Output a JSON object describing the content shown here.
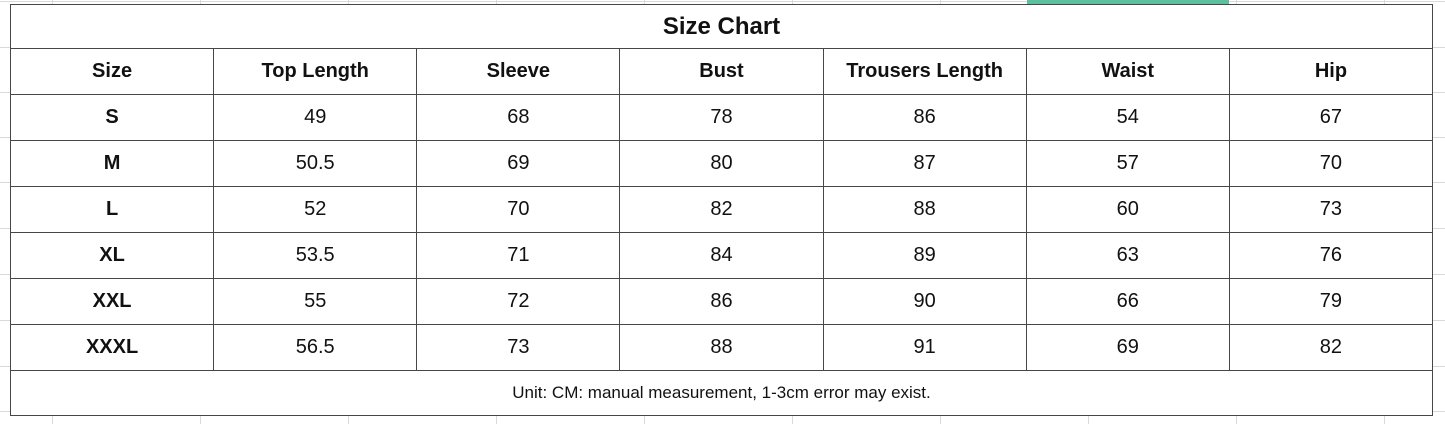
{
  "page": {
    "colors": {
      "highlight": "#5cbf9e",
      "table_border": "#474747",
      "grid_line": "#d9d9d9",
      "text": "#111111"
    }
  },
  "size_chart": {
    "title": "Size Chart",
    "columns": [
      "Size",
      "Top Length",
      "Sleeve",
      "Bust",
      "Trousers Length",
      "Waist",
      "Hip"
    ],
    "rows": [
      [
        "S",
        "49",
        "68",
        "78",
        "86",
        "54",
        "67"
      ],
      [
        "M",
        "50.5",
        "69",
        "80",
        "87",
        "57",
        "70"
      ],
      [
        "L",
        "52",
        "70",
        "82",
        "88",
        "60",
        "73"
      ],
      [
        "XL",
        "53.5",
        "71",
        "84",
        "89",
        "63",
        "76"
      ],
      [
        "XXL",
        "55",
        "72",
        "86",
        "90",
        "66",
        "79"
      ],
      [
        "XXXL",
        "56.5",
        "73",
        "88",
        "91",
        "69",
        "82"
      ]
    ],
    "footnote": "Unit: CM: manual measurement, 1-3cm error may exist."
  }
}
